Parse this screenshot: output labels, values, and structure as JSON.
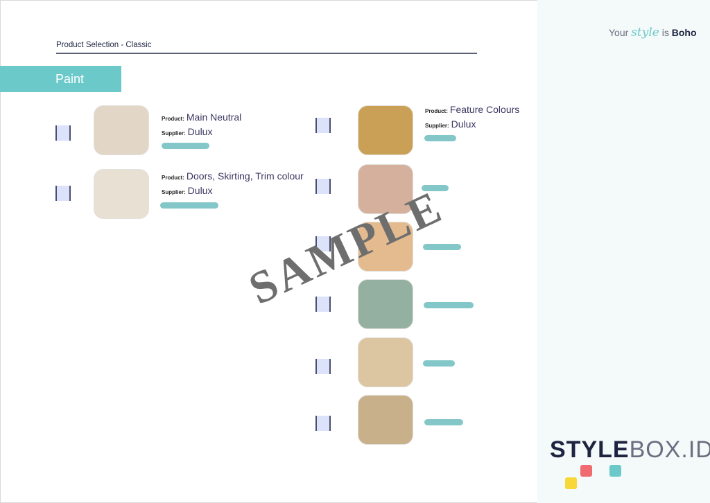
{
  "header": {
    "title": "Product Selection - Classic",
    "tagline": {
      "prefix": "Your",
      "style": "style",
      "middle": "is",
      "suffix": "Boho"
    }
  },
  "section": {
    "label": "Paint"
  },
  "labels": {
    "product": "Product:",
    "supplier": "Supplier:"
  },
  "left_items": [
    {
      "product": "Main Neutral",
      "supplier": "Dulux",
      "color": "#e2d7c7"
    },
    {
      "product": "Doors, Skirting, Trim colour",
      "supplier": "Dulux",
      "color": "#e8e0d2"
    }
  ],
  "right_items": [
    {
      "product": "Feature Colours",
      "supplier": "Dulux",
      "color": "#c9a055"
    },
    {
      "color": "#d5b09d"
    },
    {
      "color": "#e3bb8e"
    },
    {
      "color": "#93b0a0"
    },
    {
      "color": "#dcc5a1"
    },
    {
      "color": "#c8b08a"
    }
  ],
  "watermark": "SAMPLE",
  "logo": {
    "bold": "STYLE",
    "light": "BOX.ID",
    "colors": [
      "#f06b70",
      "#6cc9ca",
      "#f8d838"
    ]
  },
  "colors": {
    "accent": "#6cc9ca",
    "redaction": "#84c7c8"
  }
}
